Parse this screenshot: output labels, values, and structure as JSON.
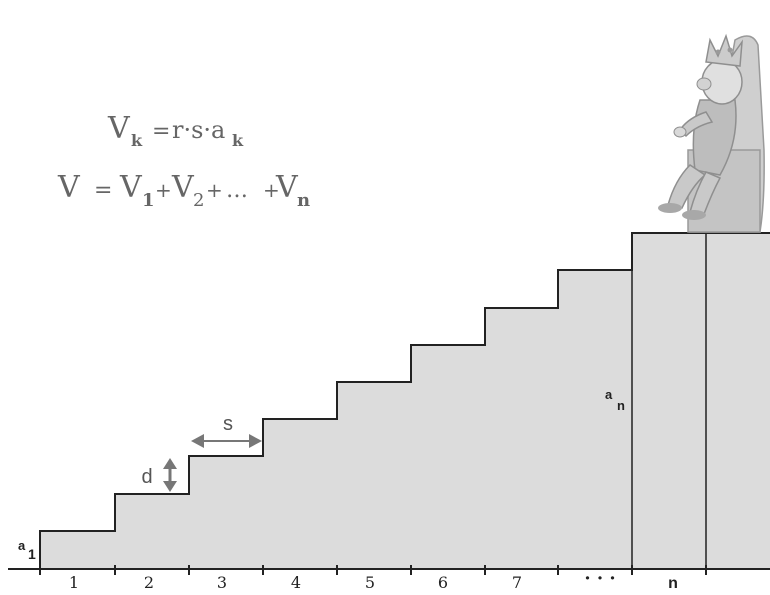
{
  "formulas": {
    "vk": {
      "lhs": "V",
      "lhs_sub": "k",
      "eq": "=",
      "rhs": "r·s·a",
      "rhs_sub": "k"
    },
    "v": {
      "lhs": "V",
      "eq": "=",
      "t1": "V",
      "t1_sub": "1",
      "plus1": "+",
      "t2": "V",
      "t2_sub": "2",
      "plus2": "+",
      "dots": "…",
      "plus3": "+",
      "tn": "V",
      "tn_sub": "n"
    }
  },
  "labels": {
    "a1": {
      "main": "a",
      "sub": "1"
    },
    "an": {
      "main": "a",
      "sub": "n"
    },
    "s": "s",
    "d": "d",
    "steps": [
      "1",
      "2",
      "3",
      "4",
      "5",
      "6",
      "7"
    ],
    "ellipsis": "· · ·",
    "last": "n"
  },
  "colors": {
    "stair_fill": "#dcdcdc",
    "stroke": "#222222",
    "formula_text": "#666666",
    "arrow": "#777777",
    "figure": "#bdbdbd"
  },
  "figure": {
    "icon": "king-on-throne-icon"
  }
}
